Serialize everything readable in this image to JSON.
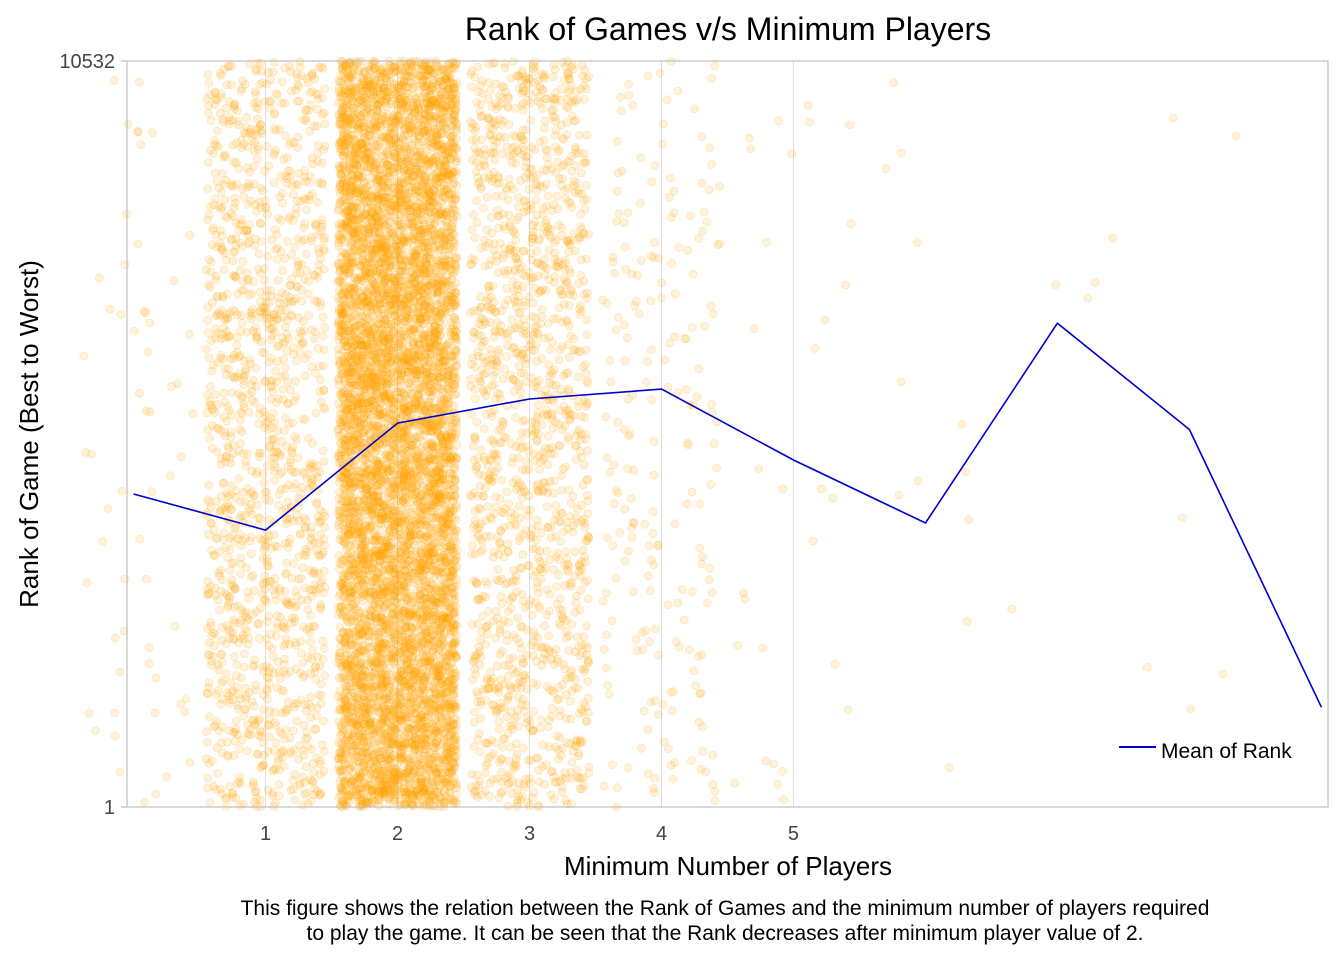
{
  "chart_data": {
    "type": "scatter",
    "title": "Rank of Games v/s Minimum Players",
    "xlabel": "Minimum Number of Players",
    "ylabel": "Rank of Game (Best to Worst)",
    "x_ticks": [
      "1",
      "2",
      "3",
      "4",
      "5"
    ],
    "x_tick_values": [
      1,
      2,
      3,
      4,
      5
    ],
    "xlim": [
      -0.05,
      9.05
    ],
    "y_ticks": [
      "1",
      "10532"
    ],
    "y_tick_values": [
      1,
      10532
    ],
    "ylim": [
      1,
      10532
    ],
    "grid": "vertical",
    "point_color": "#FFA500",
    "scatter_groups": [
      {
        "x": 0,
        "count": 60,
        "jitter": 0.45
      },
      {
        "x": 1,
        "count": 1400,
        "jitter": 0.45
      },
      {
        "x": 2,
        "count": 7500,
        "jitter": 0.45
      },
      {
        "x": 3,
        "count": 1500,
        "jitter": 0.45
      },
      {
        "x": 4,
        "count": 220,
        "jitter": 0.45
      },
      {
        "x": 5,
        "count": 30,
        "jitter": 0.45
      },
      {
        "x": 6,
        "count": 12,
        "jitter": 0.45
      },
      {
        "x": 7,
        "count": 5,
        "jitter": 0.45
      },
      {
        "x": 8,
        "count": 6,
        "jitter": 0.45
      }
    ],
    "series": [
      {
        "name": "Mean of Rank",
        "type": "line",
        "color": "#0000CD",
        "x": [
          0,
          1,
          2,
          3,
          4,
          5,
          6,
          7,
          8,
          9
        ],
        "values": [
          4420,
          3910,
          5420,
          5760,
          5900,
          4900,
          4010,
          6830,
          5330,
          1410
        ]
      }
    ],
    "legend": {
      "position": "bottom-right",
      "label": "Mean of Rank"
    },
    "caption_lines": [
      "This figure shows the relation between the Rank of Games and the minimum number of players required",
      "to play the game. It can be seen that the Rank decreases after minimum player value of 2."
    ]
  }
}
